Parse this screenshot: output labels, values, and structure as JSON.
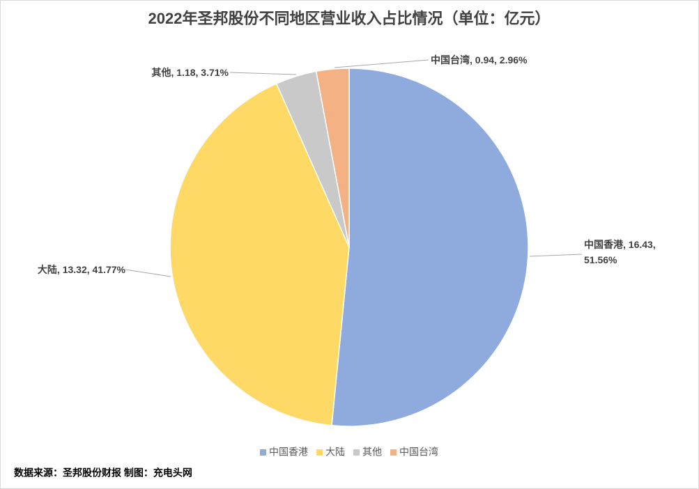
{
  "chart_data": {
    "type": "pie",
    "title": "2022年圣邦股份不同地区营业收入占比情况（单位：亿元）",
    "categories": [
      "中国香港",
      "大陆",
      "其他",
      "中国台湾"
    ],
    "values": [
      16.43,
      13.32,
      1.18,
      0.94
    ],
    "value_labels": [
      "中国香港, 16.43, 51.56%",
      "大陆, 13.32, 41.77%",
      "其他, 1.18, 3.71%",
      "中国台湾, 0.94, 2.96%"
    ],
    "colors": [
      "#8faadc",
      "#ffd966",
      "#c9c9c9",
      "#f4b183"
    ],
    "legend": "bottom",
    "source": "数据来源：圣邦股份财报 制图：充电头网"
  }
}
